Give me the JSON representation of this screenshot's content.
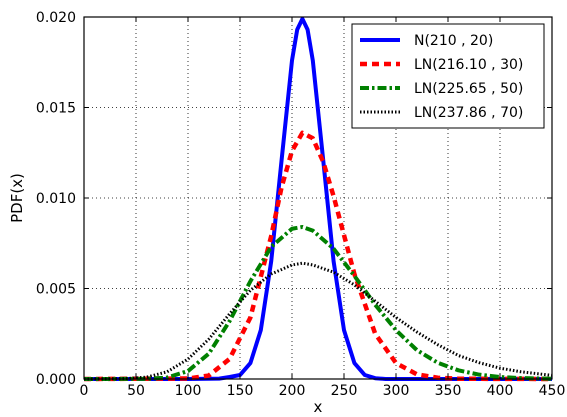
{
  "chart_data": {
    "type": "line",
    "xlabel": "x",
    "ylabel": "PDF(x)",
    "xlim": [
      0,
      450
    ],
    "ylim": [
      0,
      0.02
    ],
    "xticks": [
      "0",
      "50",
      "100",
      "150",
      "200",
      "250",
      "300",
      "350",
      "400",
      "450"
    ],
    "yticks": [
      "0.000",
      "0.005",
      "0.010",
      "0.015",
      "0.020"
    ],
    "grid": true,
    "legend_position": "top-right",
    "series": [
      {
        "name": "N(210 , 20)",
        "color": "#0000ff",
        "style": "solid",
        "x": [
          0,
          100,
          130,
          140,
          150,
          160,
          170,
          180,
          190,
          200,
          205,
          210,
          215,
          220,
          230,
          240,
          250,
          260,
          270,
          280,
          290,
          450
        ],
        "y": [
          0.0,
          0.0,
          2.2e-05,
          0.00011,
          0.00022,
          0.00088,
          0.0027,
          0.0065,
          0.0121,
          0.0176,
          0.0193,
          0.0199,
          0.0193,
          0.0176,
          0.0121,
          0.0065,
          0.0027,
          0.00088,
          0.00022,
          4.4e-05,
          0.0,
          0.0
        ]
      },
      {
        "name": "LN(216.10 , 30)",
        "color": "#ff0000",
        "style": "dashed",
        "x": [
          0,
          100,
          120,
          140,
          160,
          180,
          190,
          200,
          210,
          220,
          230,
          240,
          260,
          280,
          300,
          320,
          340,
          360,
          450
        ],
        "y": [
          0.0,
          2.7e-05,
          0.00019,
          0.00111,
          0.0034,
          0.0079,
          0.0106,
          0.0126,
          0.0136,
          0.0133,
          0.012,
          0.0101,
          0.0058,
          0.0025,
          0.00088,
          0.00026,
          7e-05,
          1.5e-05,
          0.0
        ]
      },
      {
        "name": "LN(225.65 , 50)",
        "color": "#008000",
        "style": "dashdot",
        "x": [
          0,
          60,
          80,
          100,
          120,
          140,
          160,
          180,
          200,
          210,
          220,
          240,
          260,
          280,
          300,
          320,
          340,
          360,
          380,
          400,
          420,
          450
        ],
        "y": [
          0.0,
          7e-06,
          8e-05,
          0.00044,
          0.0014,
          0.0032,
          0.0054,
          0.0073,
          0.0083,
          0.0084,
          0.0082,
          0.0072,
          0.0057,
          0.0041,
          0.0027,
          0.0016,
          0.0009,
          0.00048,
          0.00024,
          0.00011,
          5e-05,
          1.5e-05
        ]
      },
      {
        "name": "LN(237.86 , 70)",
        "color": "#000000",
        "style": "dotted",
        "x": [
          0,
          40,
          60,
          80,
          100,
          120,
          140,
          160,
          180,
          200,
          210,
          220,
          240,
          260,
          280,
          300,
          320,
          340,
          360,
          380,
          400,
          420,
          450
        ],
        "y": [
          0.0,
          2e-05,
          0.0001,
          0.0004,
          0.0011,
          0.0022,
          0.0036,
          0.0049,
          0.0058,
          0.0063,
          0.0064,
          0.0063,
          0.0059,
          0.0052,
          0.0043,
          0.0034,
          0.0026,
          0.0019,
          0.0013,
          0.0009,
          0.0006,
          0.0004,
          0.0002
        ]
      }
    ]
  }
}
